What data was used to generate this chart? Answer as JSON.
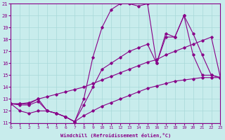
{
  "xlabel": "Windchill (Refroidissement éolien,°C)",
  "background_color": "#c8ecec",
  "grid_color": "#a8d8d8",
  "line_color": "#880088",
  "xlim": [
    0,
    23
  ],
  "ylim": [
    11,
    21
  ],
  "xticks": [
    0,
    1,
    2,
    3,
    4,
    5,
    6,
    7,
    8,
    9,
    10,
    11,
    12,
    13,
    14,
    15,
    16,
    17,
    18,
    19,
    20,
    21,
    22,
    23
  ],
  "yticks": [
    11,
    12,
    13,
    14,
    15,
    16,
    17,
    18,
    19,
    20,
    21
  ],
  "curves": [
    {
      "x": [
        0,
        1,
        2,
        3,
        4,
        5,
        6,
        7,
        8,
        9,
        10,
        11,
        12,
        13,
        14,
        15,
        16,
        17,
        18,
        19,
        20,
        21,
        22,
        23
      ],
      "y": [
        12.6,
        12.6,
        12.6,
        13.0,
        12.0,
        11.8,
        11.5,
        11.1,
        13.0,
        16.5,
        19.0,
        20.5,
        21.0,
        21.0,
        20.8,
        21.0,
        16.0,
        18.5,
        18.2,
        20.0,
        16.7,
        15.0,
        15.0,
        14.8
      ]
    },
    {
      "x": [
        0,
        1,
        2,
        3,
        4,
        5,
        6,
        7,
        8,
        9,
        10,
        11,
        12,
        13,
        14,
        15,
        16,
        17,
        18,
        19,
        20,
        21,
        22,
        23
      ],
      "y": [
        12.6,
        12.6,
        12.7,
        13.0,
        13.2,
        13.4,
        13.6,
        13.8,
        14.0,
        14.3,
        14.6,
        14.9,
        15.2,
        15.5,
        15.8,
        16.1,
        16.3,
        16.7,
        17.0,
        17.3,
        17.6,
        17.9,
        18.2,
        14.8
      ]
    },
    {
      "x": [
        0,
        1,
        2,
        3,
        4,
        5,
        6,
        7,
        8,
        9,
        10,
        11,
        12,
        13,
        14,
        15,
        16,
        17,
        18,
        19,
        20,
        21,
        22,
        23
      ],
      "y": [
        12.6,
        12.5,
        12.5,
        12.8,
        12.0,
        11.8,
        11.5,
        11.1,
        11.6,
        12.0,
        12.4,
        12.7,
        13.0,
        13.3,
        13.6,
        13.9,
        14.1,
        14.3,
        14.5,
        14.6,
        14.7,
        14.8,
        14.8,
        14.8
      ]
    },
    {
      "x": [
        0,
        1,
        2,
        3,
        4,
        5,
        6,
        7,
        8,
        9,
        10,
        11,
        12,
        13,
        14,
        15,
        16,
        17,
        18,
        19,
        20,
        21,
        22,
        23
      ],
      "y": [
        12.6,
        12.0,
        11.8,
        12.0,
        12.0,
        11.8,
        11.5,
        11.1,
        12.5,
        14.0,
        15.5,
        16.0,
        16.5,
        17.0,
        17.3,
        17.6,
        16.0,
        18.2,
        18.2,
        20.0,
        18.5,
        16.7,
        15.0,
        14.8
      ]
    }
  ]
}
